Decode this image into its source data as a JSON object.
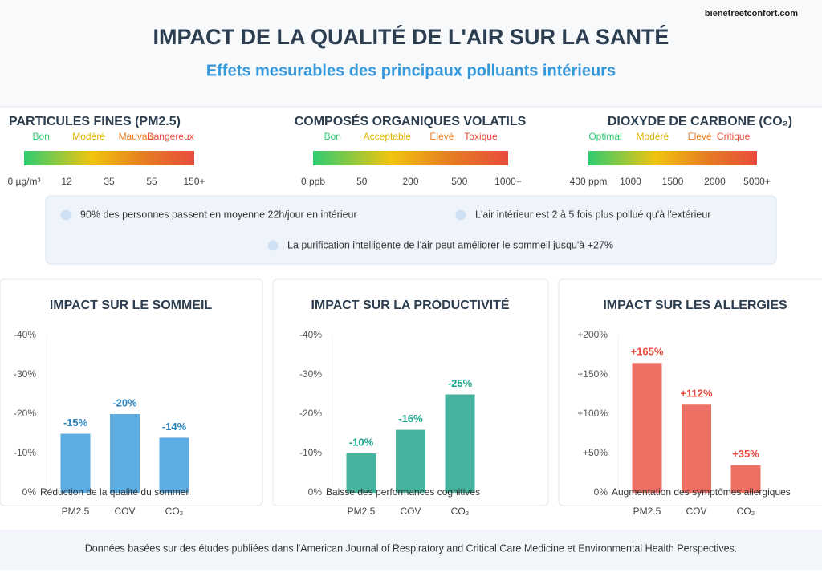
{
  "watermark": "bienetreetconfort.com",
  "header": {
    "title": "IMPACT DE LA QUALITÉ DE L'AIR SUR LA SANTÉ",
    "subtitle": "Effets mesurables des principaux polluants intérieurs"
  },
  "scales": [
    {
      "title": "PARTICULES FINES (PM2.5)",
      "levels": [
        {
          "label": "Bon",
          "color": "#2ecc71"
        },
        {
          "label": "Modéré",
          "color": "#e1b400"
        },
        {
          "label": "Mauvais",
          "color": "#e67e22"
        },
        {
          "label": "Dangereux",
          "color": "#e74c3c"
        }
      ],
      "ticks": [
        "0 µg/m³",
        "12",
        "35",
        "55",
        "150+"
      ]
    },
    {
      "title": "COMPOSÉS ORGANIQUES VOLATILS",
      "levels": [
        {
          "label": "Bon",
          "color": "#2ecc71"
        },
        {
          "label": "Acceptable",
          "color": "#e1b400"
        },
        {
          "label": "Élevé",
          "color": "#e67e22"
        },
        {
          "label": "Toxique",
          "color": "#e74c3c"
        }
      ],
      "ticks": [
        "0 ppb",
        "50",
        "200",
        "500",
        "1000+"
      ]
    },
    {
      "title": "DIOXYDE DE CARBONE (CO₂)",
      "levels": [
        {
          "label": "Optimal",
          "color": "#2ecc71"
        },
        {
          "label": "Modéré",
          "color": "#e1b400"
        },
        {
          "label": "Élevé",
          "color": "#e67e22"
        },
        {
          "label": "Critique",
          "color": "#e74c3c"
        }
      ],
      "ticks": [
        "400 ppm",
        "1000",
        "1500",
        "2000",
        "5000+"
      ]
    }
  ],
  "facts": [
    "90% des personnes passent en moyenne 22h/jour en intérieur",
    "L'air intérieur est 2 à 5 fois plus pollué qu'à l'extérieur",
    "La purification intelligente de l'air peut améliorer le sommeil jusqu'à +27%"
  ],
  "chart_data": [
    {
      "type": "bar",
      "title": "IMPACT SUR LE SOMMEIL",
      "caption": "Réduction de la qualité du sommeil",
      "categories": [
        "PM2.5",
        "COV",
        "CO₂"
      ],
      "values": [
        -15,
        -20,
        -14
      ],
      "value_labels": [
        "-15%",
        "-20%",
        "-14%"
      ],
      "color": "#5dade2",
      "label_color": "#2e86c1",
      "ylim": [
        0,
        -40
      ],
      "yticks": [
        {
          "value": -40,
          "label": "-40%"
        },
        {
          "value": -30,
          "label": "-30%"
        },
        {
          "value": -20,
          "label": "-20%"
        },
        {
          "value": -10,
          "label": "-10%"
        },
        {
          "value": 0,
          "label": "0%"
        }
      ],
      "grid": false
    },
    {
      "type": "bar",
      "title": "IMPACT SUR LA PRODUCTIVITÉ",
      "caption": "Baisse des performances cognitives",
      "categories": [
        "PM2.5",
        "COV",
        "CO₂"
      ],
      "values": [
        -10,
        -16,
        -25
      ],
      "value_labels": [
        "-10%",
        "-16%",
        "-25%"
      ],
      "color": "#45b39d",
      "label_color": "#17a589",
      "ylim": [
        0,
        -40
      ],
      "yticks": [
        {
          "value": -40,
          "label": "-40%"
        },
        {
          "value": -30,
          "label": "-30%"
        },
        {
          "value": -20,
          "label": "-20%"
        },
        {
          "value": -10,
          "label": "-10%"
        },
        {
          "value": 0,
          "label": "0%"
        }
      ],
      "grid": false
    },
    {
      "type": "bar",
      "title": "IMPACT SUR LES ALLERGIES",
      "caption": "Augmentation des symptômes allergiques",
      "categories": [
        "PM2.5",
        "COV",
        "CO₂"
      ],
      "values": [
        165,
        112,
        35
      ],
      "value_labels": [
        "+165%",
        "+112%",
        "+35%"
      ],
      "color": "#ec7063",
      "label_color": "#e74c3c",
      "ylim": [
        0,
        200
      ],
      "yticks": [
        {
          "value": 200,
          "label": "+200%"
        },
        {
          "value": 150,
          "label": "+150%"
        },
        {
          "value": 100,
          "label": "+100%"
        },
        {
          "value": 50,
          "label": "+50%"
        },
        {
          "value": 0,
          "label": "0%"
        }
      ],
      "grid": false
    }
  ],
  "footer": "Données basées sur des études publiées dans l'American Journal of Respiratory and Critical Care Medicine et Environmental Health Perspectives."
}
